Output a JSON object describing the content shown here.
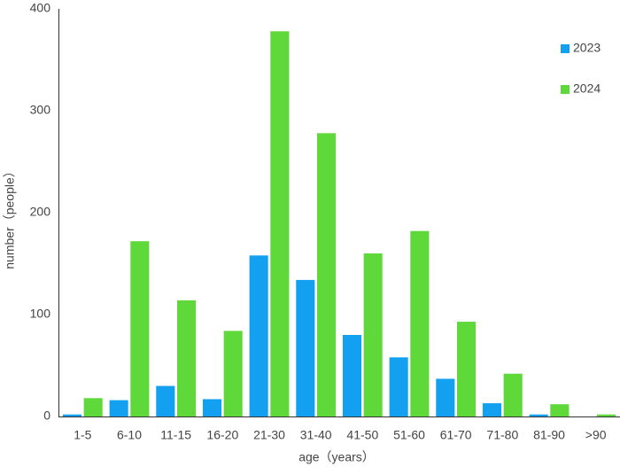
{
  "chart_data": {
    "type": "bar",
    "x_label": "age（years）",
    "y_label": "number（people）",
    "categories": [
      "1-5",
      "6-10",
      "11-15",
      "16-20",
      "21-30",
      "31-40",
      "41-50",
      "51-60",
      "61-70",
      "71-80",
      "81-90",
      ">90"
    ],
    "series": [
      {
        "name": "2023",
        "color": "#14a0f0",
        "values": [
          2,
          16,
          30,
          17,
          158,
          134,
          80,
          58,
          37,
          13,
          2,
          0
        ]
      },
      {
        "name": "2024",
        "color": "#5fd83a",
        "values": [
          18,
          172,
          114,
          84,
          378,
          278,
          160,
          182,
          93,
          42,
          12,
          2
        ]
      }
    ],
    "ylim": [
      0,
      400
    ],
    "yticks": [
      0,
      100,
      200,
      300,
      400
    ],
    "grid": false,
    "legend": "upper right"
  }
}
